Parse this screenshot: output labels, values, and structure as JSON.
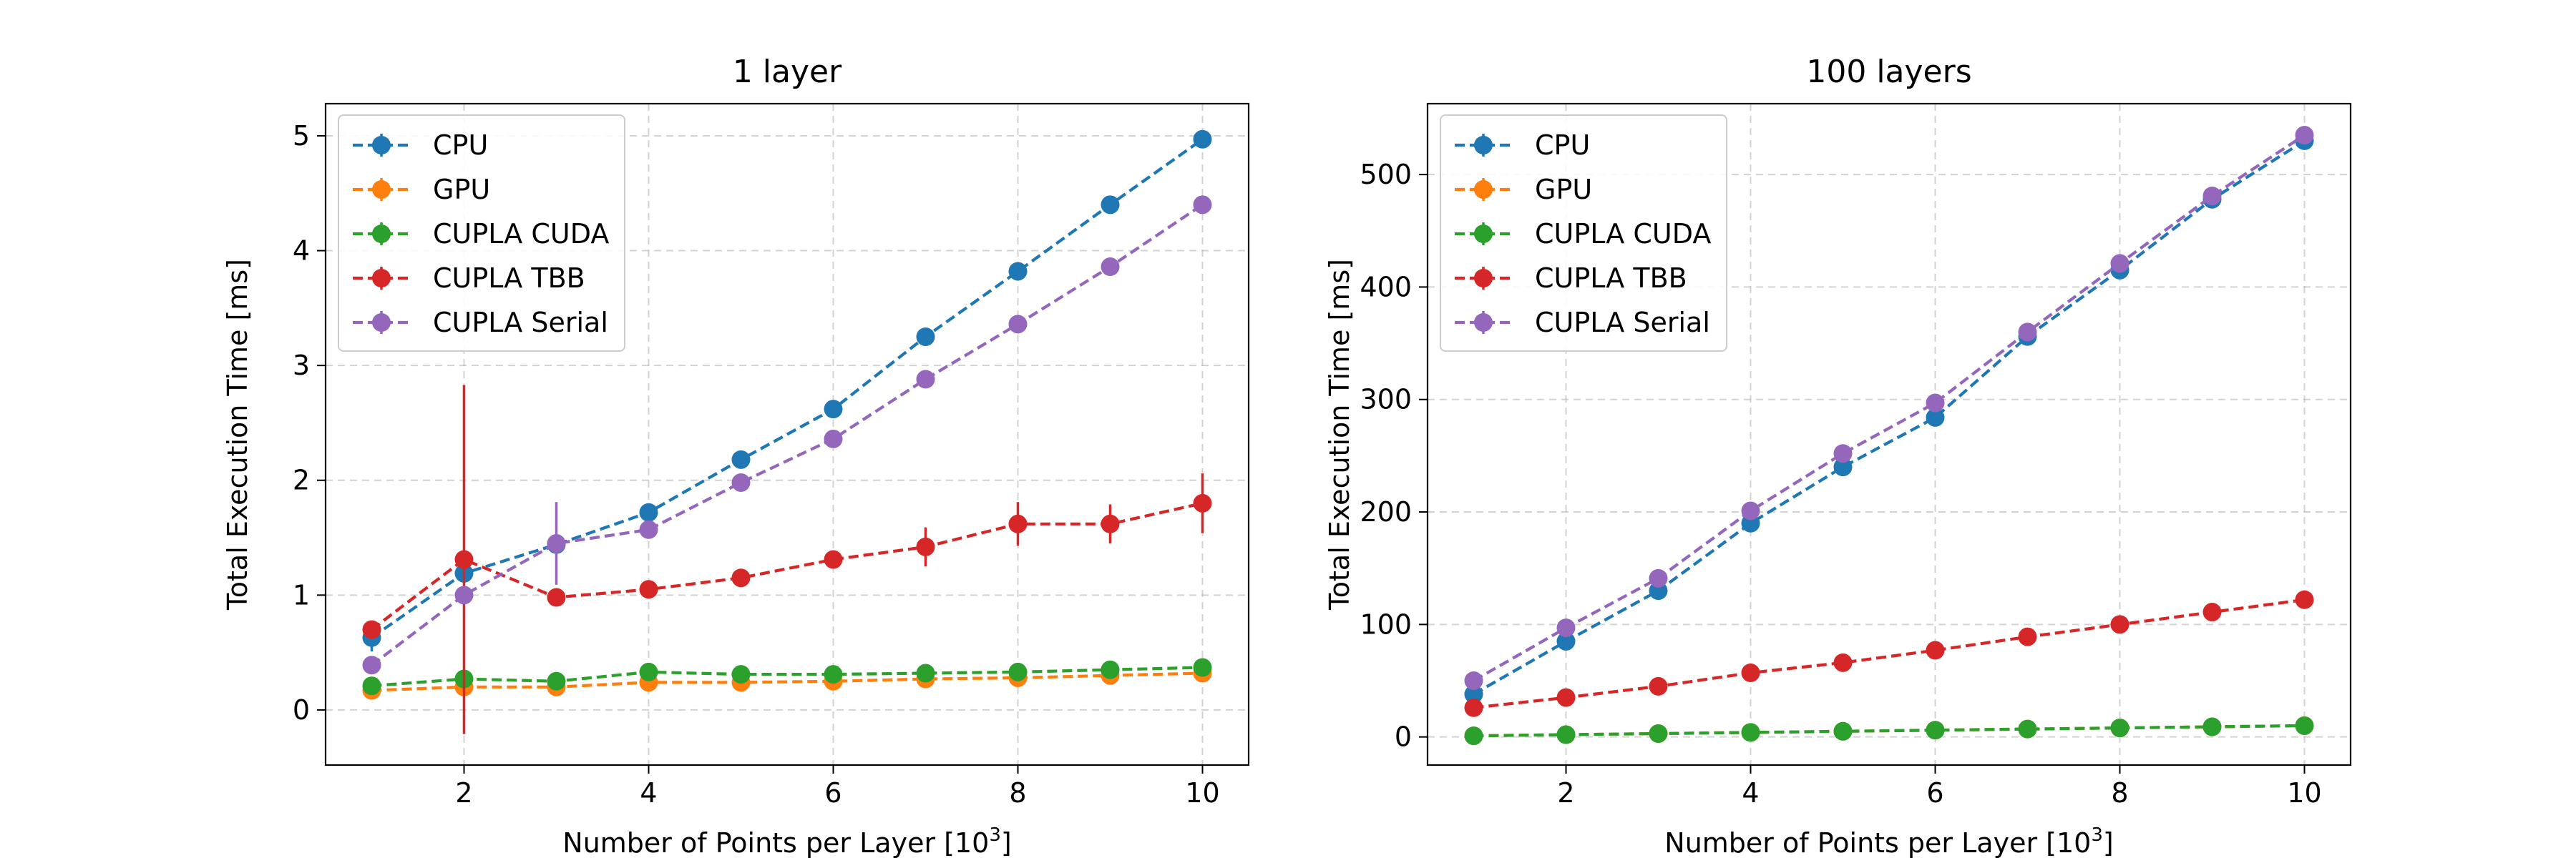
{
  "chart_data": [
    {
      "type": "line",
      "title": "1 layer",
      "xlabel": "Number of Points per Layer [10",
      "xlabel_sup": "3",
      "xlabel_end": "]",
      "ylabel": "Total Execution Time [ms]",
      "xlim": [
        0.5,
        10.5
      ],
      "ylim": [
        -0.48,
        5.28
      ],
      "xticks": [
        2,
        4,
        6,
        8,
        10
      ],
      "yticks": [
        0,
        1,
        2,
        3,
        4,
        5
      ],
      "grid": true,
      "legend_position": "top-left",
      "x": [
        1,
        2,
        3,
        4,
        5,
        6,
        7,
        8,
        9,
        10
      ],
      "series": [
        {
          "name": "CPU",
          "color": "#1f77b4",
          "values": [
            0.63,
            1.19,
            1.44,
            1.72,
            2.18,
            2.62,
            3.25,
            3.82,
            4.4,
            4.97
          ],
          "errors": [
            0.12,
            0.05,
            0.04,
            0.04,
            0.04,
            0.04,
            0.04,
            0.04,
            0.04,
            0.04
          ]
        },
        {
          "name": "GPU",
          "color": "#ff7f0e",
          "values": [
            0.17,
            0.2,
            0.2,
            0.24,
            0.24,
            0.25,
            0.27,
            0.28,
            0.3,
            0.32
          ],
          "errors": [
            0.02,
            0.02,
            0.02,
            0.02,
            0.02,
            0.02,
            0.02,
            0.02,
            0.02,
            0.02
          ]
        },
        {
          "name": "CUPLA CUDA",
          "color": "#2ca02c",
          "values": [
            0.21,
            0.27,
            0.25,
            0.33,
            0.31,
            0.31,
            0.32,
            0.33,
            0.35,
            0.37
          ],
          "errors": [
            0.02,
            0.02,
            0.02,
            0.02,
            0.02,
            0.02,
            0.02,
            0.02,
            0.02,
            0.02
          ]
        },
        {
          "name": "CUPLA TBB",
          "color": "#d62728",
          "values": [
            0.7,
            1.31,
            0.98,
            1.05,
            1.15,
            1.31,
            1.42,
            1.62,
            1.62,
            1.8
          ],
          "errors": [
            0.05,
            1.52,
            0.05,
            0.05,
            0.05,
            0.05,
            0.17,
            0.19,
            0.17,
            0.26
          ]
        },
        {
          "name": "CUPLA Serial",
          "color": "#9467bd",
          "values": [
            0.39,
            1.0,
            1.45,
            1.57,
            1.98,
            2.36,
            2.88,
            3.36,
            3.86,
            4.4
          ],
          "errors": [
            0.04,
            0.04,
            0.36,
            0.04,
            0.04,
            0.04,
            0.04,
            0.04,
            0.04,
            0.04
          ]
        }
      ]
    },
    {
      "type": "line",
      "title": "100 layers",
      "xlabel": "Number of Points per Layer [10",
      "xlabel_sup": "3",
      "xlabel_end": "]",
      "ylabel": "Total Execution Time [ms]",
      "xlim": [
        0.5,
        10.5
      ],
      "ylim": [
        -25,
        563
      ],
      "xticks": [
        2,
        4,
        6,
        8,
        10
      ],
      "yticks": [
        0,
        100,
        200,
        300,
        400,
        500
      ],
      "grid": true,
      "legend_position": "top-left",
      "x": [
        1,
        2,
        3,
        4,
        5,
        6,
        7,
        8,
        9,
        10
      ],
      "series": [
        {
          "name": "CPU",
          "color": "#1f77b4",
          "values": [
            38,
            85,
            130,
            190,
            240,
            284,
            356,
            415,
            478,
            530
          ],
          "errors": [
            2,
            2,
            2,
            2,
            2,
            2,
            2,
            2,
            2,
            2
          ]
        },
        {
          "name": "GPU",
          "color": "#ff7f0e",
          "values": [
            1,
            2,
            3,
            4,
            5,
            6,
            7,
            8,
            9,
            10
          ],
          "errors": [
            0.5,
            0.5,
            0.5,
            0.5,
            0.5,
            0.5,
            0.5,
            0.5,
            0.5,
            0.5
          ]
        },
        {
          "name": "CUPLA CUDA",
          "color": "#2ca02c",
          "values": [
            1,
            2,
            3,
            4,
            5,
            6,
            7,
            8,
            9,
            10
          ],
          "errors": [
            0.5,
            0.5,
            0.5,
            0.5,
            0.5,
            0.5,
            0.5,
            0.5,
            0.5,
            0.5
          ]
        },
        {
          "name": "CUPLA TBB",
          "color": "#d62728",
          "values": [
            26,
            35,
            45,
            57,
            66,
            77,
            89,
            100,
            111,
            122
          ],
          "errors": [
            1,
            1,
            1,
            1,
            1,
            1,
            1,
            1,
            1,
            1
          ]
        },
        {
          "name": "CUPLA Serial",
          "color": "#9467bd",
          "values": [
            50,
            97,
            141,
            201,
            252,
            297,
            360,
            421,
            481,
            535
          ],
          "errors": [
            2,
            2,
            2,
            2,
            2,
            2,
            2,
            2,
            2,
            2
          ]
        }
      ]
    }
  ]
}
